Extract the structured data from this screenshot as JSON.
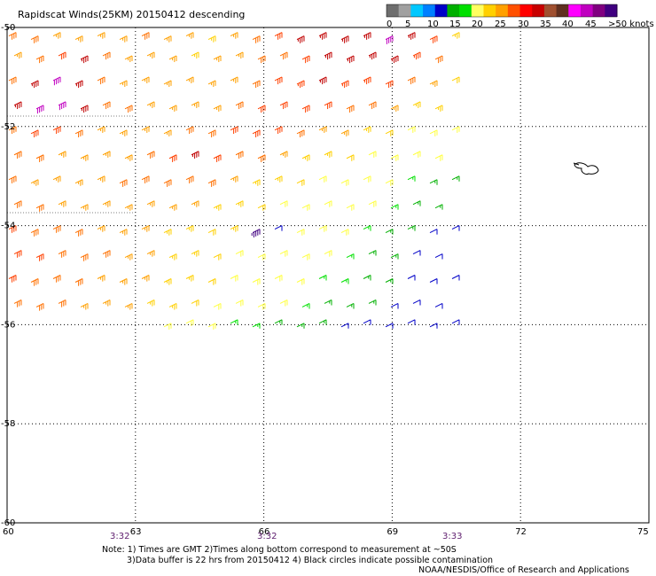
{
  "title": "Rapidscat Winds(25KM) 20150412 descending",
  "legend": {
    "colors": [
      "#6e6e6e",
      "#a0a0a0",
      "#00c8ff",
      "#0080ff",
      "#0000c8",
      "#00b000",
      "#00e000",
      "#ffff60",
      "#ffd000",
      "#ffa000",
      "#ff5000",
      "#ff0000",
      "#c80000",
      "#a05030",
      "#603020",
      "#ff00ff",
      "#c000c0",
      "#800080",
      "#400080"
    ],
    "labels": [
      "0",
      "5",
      "10",
      "15",
      "20",
      "25",
      "30",
      "35",
      "40",
      "45",
      ">50 knots"
    ]
  },
  "axes": {
    "x_labels": [
      "60",
      "63",
      "66",
      "69",
      "72",
      "75"
    ],
    "y_labels": [
      "-50",
      "-52",
      "-54",
      "-56",
      "-58",
      "-60"
    ]
  },
  "times": [
    "3:32",
    "3:32",
    "3:33"
  ],
  "notes": {
    "line1": "Note: 1) Times are GMT 2)Times along bottom correspond to measurement at ~50S",
    "line2": "3)Data buffer is 22 hrs from 20150412 4) Black circles indicate possible contamination",
    "line3": "NOAA/NESDIS/Office of Research and Applications"
  },
  "map_data": {
    "lon_range": [
      60,
      75
    ],
    "lat_range": [
      -50,
      -60
    ],
    "gridlines_lon": [
      63,
      66,
      69,
      72
    ],
    "gridlines_lat": [
      -52,
      -54,
      -56,
      -58
    ],
    "wind_rows": [
      {
        "lat": -50.1,
        "speeds": [
          32,
          30,
          28,
          28,
          27,
          28,
          30,
          28,
          27,
          26,
          27,
          30,
          34,
          36,
          38,
          36,
          38,
          40,
          36,
          34,
          25
        ]
      },
      {
        "lat": -50.5,
        "speeds": [
          28,
          30,
          34,
          38,
          30,
          28,
          27,
          27,
          26,
          27,
          28,
          30,
          32,
          34,
          36,
          36,
          38,
          37,
          35,
          32,
          26
        ]
      },
      {
        "lat": -51.0,
        "speeds": [
          32,
          36,
          40,
          36,
          30,
          29,
          28,
          27,
          27,
          28,
          29,
          31,
          33,
          35,
          36,
          35,
          35,
          33,
          30,
          28,
          24
        ]
      },
      {
        "lat": -51.5,
        "speeds": [
          36,
          40,
          42,
          36,
          32,
          30,
          28,
          28,
          28,
          29,
          31,
          33,
          34,
          34,
          33,
          32,
          30,
          28,
          26,
          25,
          23
        ]
      },
      {
        "lat": -52.0,
        "speeds": [
          32,
          34,
          34,
          30,
          28,
          28,
          28,
          29,
          30,
          31,
          33,
          34,
          33,
          31,
          29,
          27,
          25,
          24,
          23,
          22,
          22
        ]
      },
      {
        "lat": -52.5,
        "speeds": [
          30,
          30,
          29,
          28,
          28,
          29,
          30,
          33,
          36,
          34,
          32,
          30,
          28,
          26,
          25,
          24,
          23,
          22,
          22,
          20,
          18
        ]
      },
      {
        "lat": -53.0,
        "speeds": [
          30,
          29,
          28,
          28,
          29,
          30,
          31,
          32,
          31,
          30,
          28,
          26,
          25,
          24,
          23,
          22,
          22,
          21,
          19,
          17,
          16
        ]
      },
      {
        "lat": -53.5,
        "speeds": [
          31,
          30,
          29,
          29,
          29,
          29,
          29,
          28,
          27,
          26,
          25,
          24,
          23,
          22,
          22,
          21,
          20,
          18,
          16,
          15,
          14
        ]
      },
      {
        "lat": -54.0,
        "speeds": [
          33,
          32,
          31,
          30,
          29,
          28,
          27,
          26,
          25,
          24,
          25,
          45,
          14,
          22,
          21,
          20,
          18,
          16,
          15,
          14,
          13
        ]
      },
      {
        "lat": -54.5,
        "speeds": [
          34,
          33,
          32,
          31,
          30,
          28,
          27,
          26,
          25,
          24,
          23,
          22,
          22,
          21,
          20,
          19,
          17,
          15,
          14,
          13,
          13
        ]
      },
      {
        "lat": -55.0,
        "speeds": [
          33,
          32,
          31,
          30,
          29,
          28,
          27,
          26,
          25,
          24,
          23,
          22,
          21,
          20,
          19,
          18,
          16,
          15,
          14,
          13,
          13
        ]
      },
      {
        "lat": -55.5,
        "speeds": [
          32,
          31,
          30,
          29,
          28,
          27,
          26,
          25,
          24,
          23,
          22,
          21,
          20,
          18,
          17,
          16,
          15,
          14,
          13,
          13,
          12
        ]
      },
      {
        "lat": -55.9,
        "speeds": [
          null,
          null,
          null,
          null,
          null,
          null,
          null,
          22,
          21,
          20,
          19,
          18,
          17,
          16,
          15,
          14,
          14,
          13,
          12,
          12,
          11
        ]
      }
    ]
  }
}
